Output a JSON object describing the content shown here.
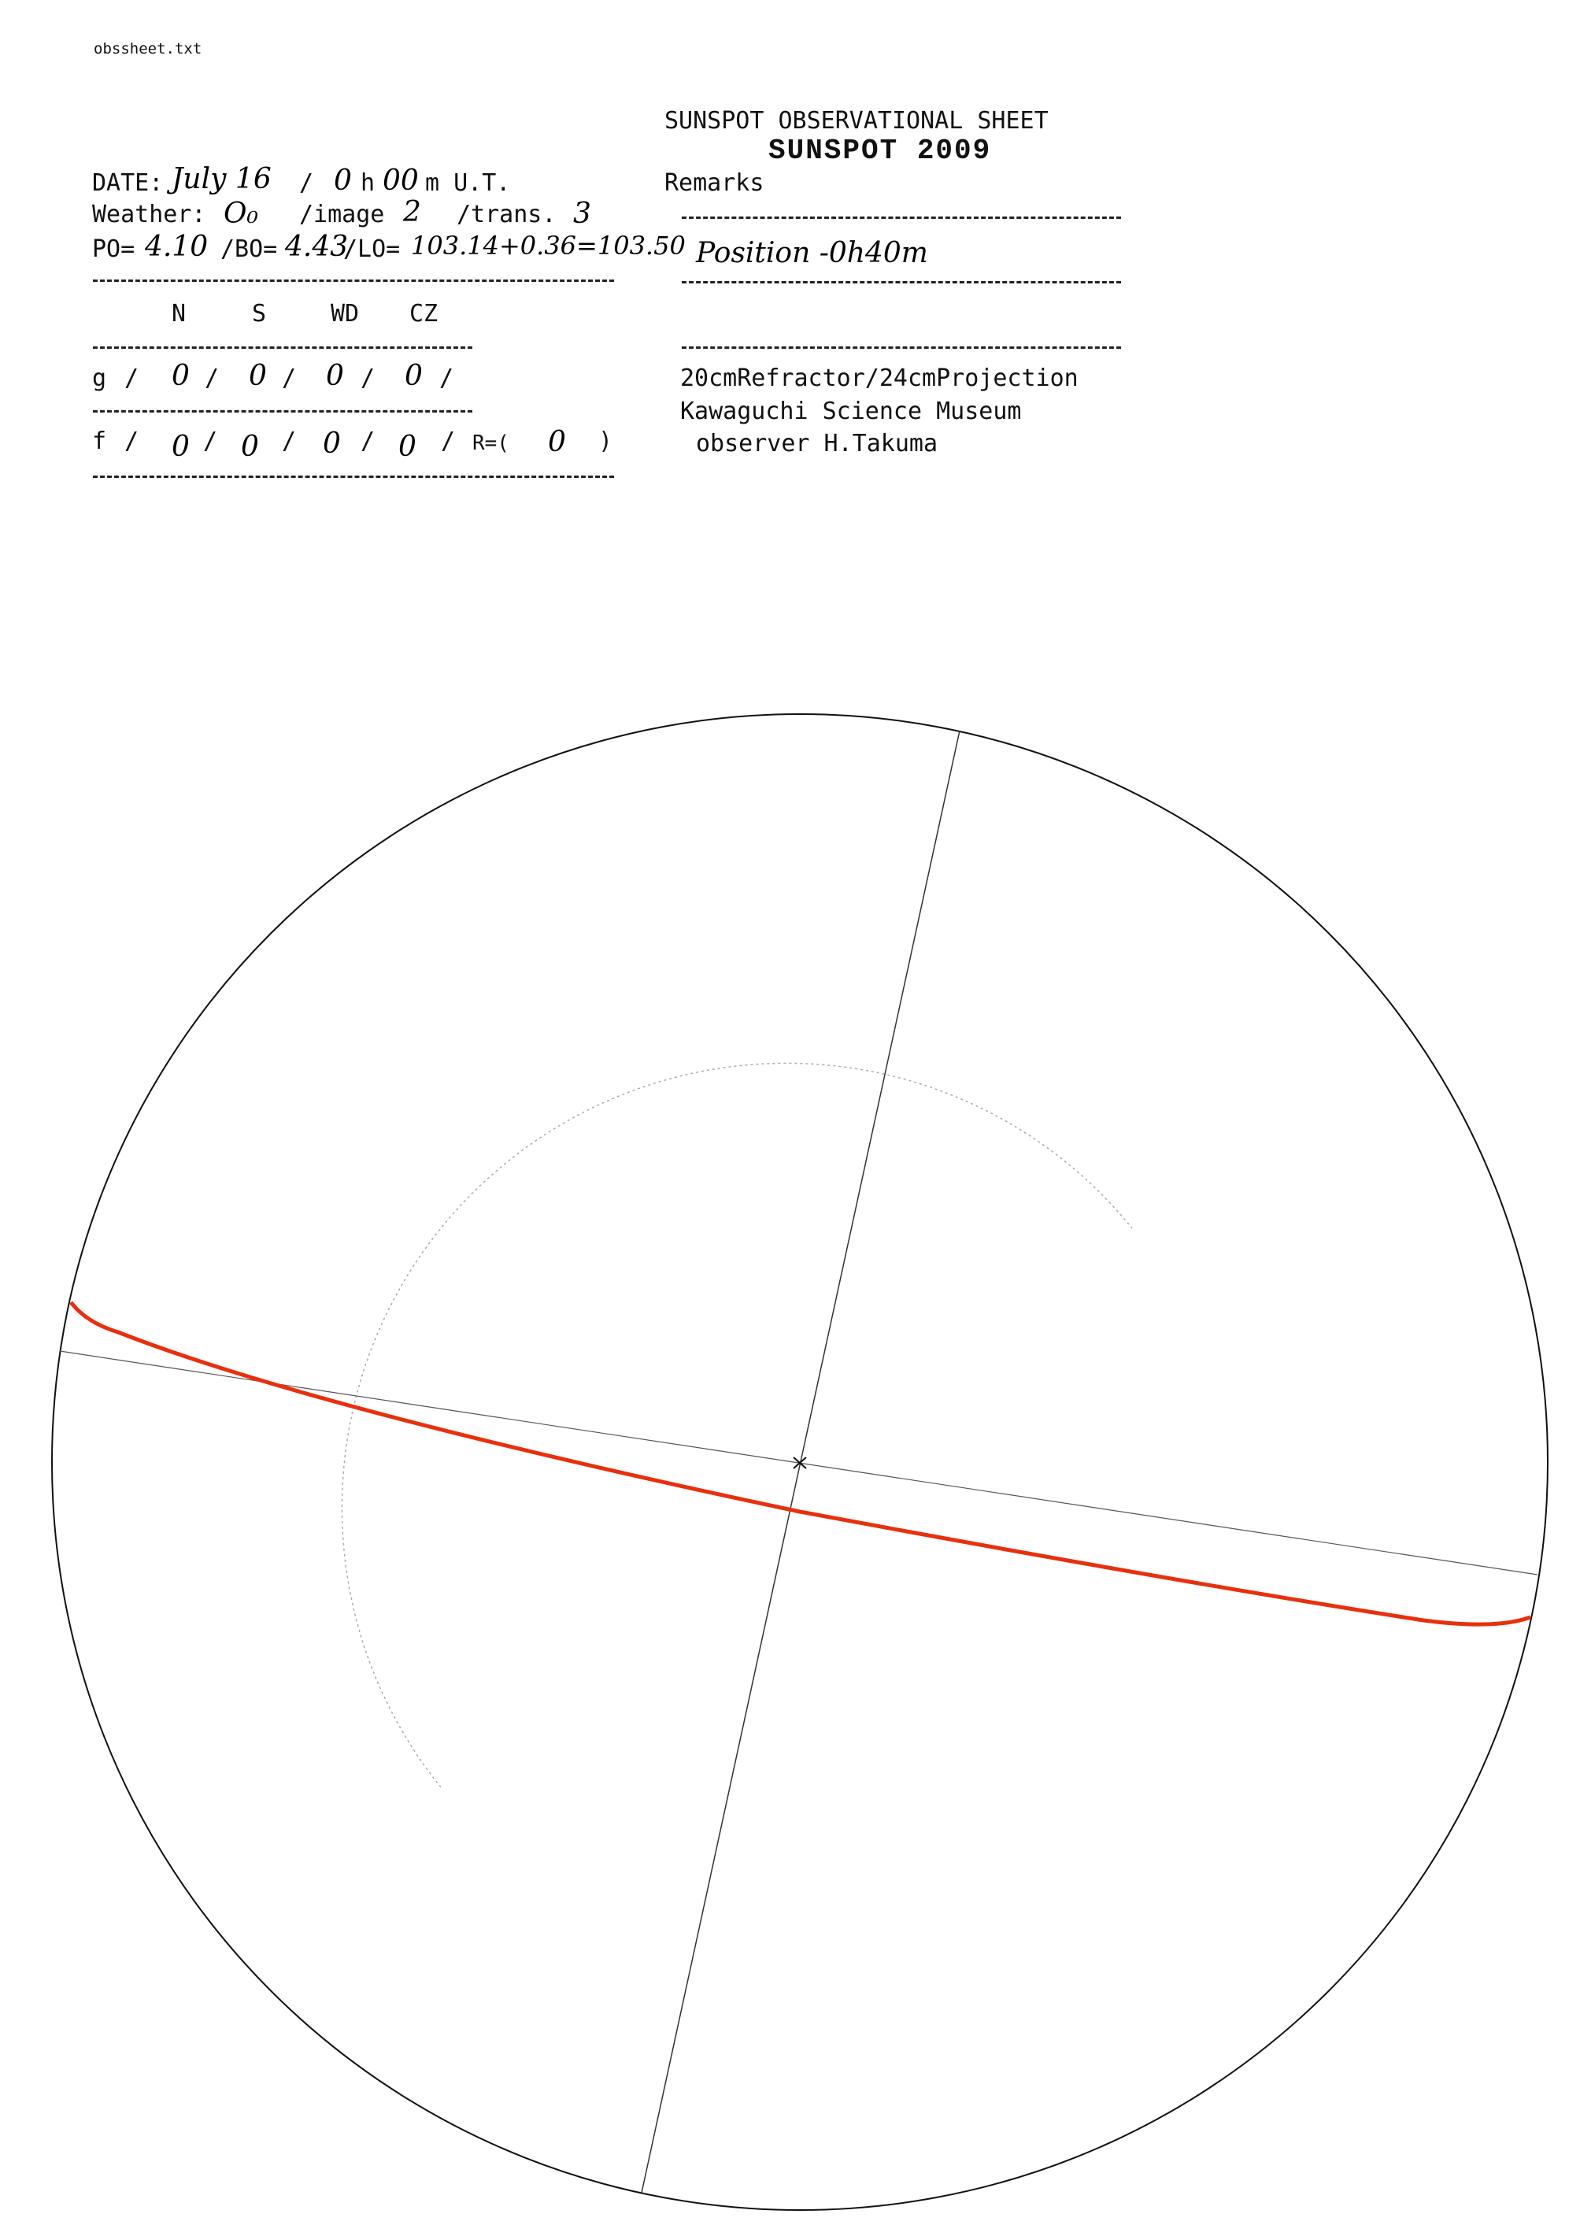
{
  "file_name": "obssheet.txt",
  "header": {
    "title": "SUNSPOT OBSERVATIONAL SHEET",
    "stamp": "SUNSPOT 2009"
  },
  "observation": {
    "date_label": "DATE:",
    "date_value": "July 16",
    "time_sep": "/",
    "hour": "0",
    "h_label": "h",
    "minute": "00",
    "m_label": "m U.T.",
    "weather_label": "Weather:",
    "weather_value": "O₀",
    "image_label": "/image",
    "image_value": "2",
    "trans_label": "/trans.",
    "trans_value": "3",
    "po_label": "PO=",
    "po_value": "4.10",
    "bo_label": "/BO=",
    "bo_value": "4.43",
    "lo_label": "/LO=",
    "lo_value": "103.14+0.36=103.50"
  },
  "counts": {
    "headers": [
      "N",
      "S",
      "WD",
      "CZ"
    ],
    "g_label": "g",
    "g_values": [
      "0",
      "0",
      "0",
      "0"
    ],
    "f_label": "f",
    "f_values": [
      "0",
      "0",
      "0",
      "0"
    ],
    "r_label": "R=(",
    "r_value": "0",
    "r_close": ")",
    "sep": "/"
  },
  "remarks": {
    "label": "Remarks",
    "note": "Position -0h40m",
    "instrument": "20cmRefractor/24cmProjection",
    "institution": "Kawaguchi Science Museum",
    "observer": "observer H.Takuma"
  },
  "colors": {
    "equator_line": "#e8300e",
    "ink": "#111111"
  }
}
